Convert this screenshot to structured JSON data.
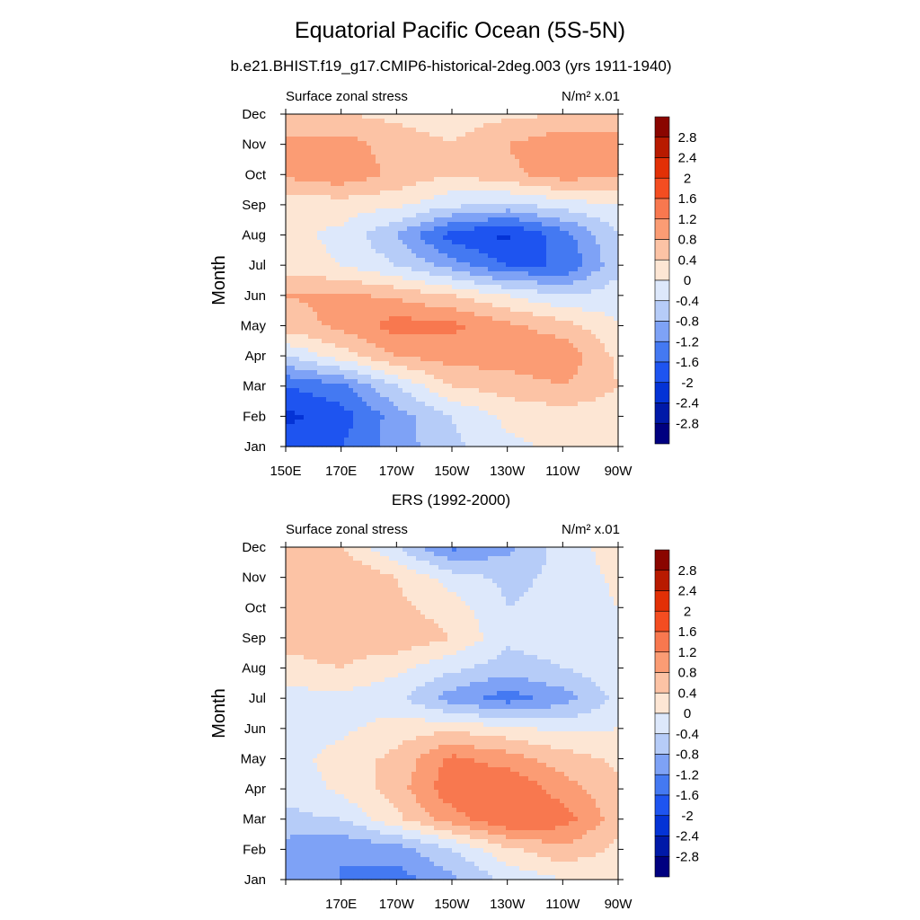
{
  "title": "Equatorial Pacific Ocean (5S-5N)",
  "colors": [
    "#000080",
    "#0019a8",
    "#0433d6",
    "#1e54f0",
    "#4479f2",
    "#7ea2f6",
    "#b6ccf8",
    "#dde8fb",
    "#fde6d4",
    "#fcc3a5",
    "#fb9c74",
    "#f8784f",
    "#f44d21",
    "#e23006",
    "#b81a00",
    "#8a0500"
  ],
  "panels": [
    {
      "heading": "b.e21.BHIST.f19_g17.CMIP6-historical-2deg.003 (yrs 1911-1940)",
      "left_label": "Surface zonal stress",
      "right_label": "N/m² x.01",
      "ylabel": "Month",
      "xticks": [
        "150E",
        "170E",
        "170W",
        "150W",
        "130W",
        "110W",
        "90W"
      ],
      "yticks": [
        "Jan",
        "Feb",
        "Mar",
        "Apr",
        "May",
        "Jun",
        "Jul",
        "Aug",
        "Sep",
        "Oct",
        "Nov",
        "Dec"
      ],
      "colorbar_labels": [
        "2.8",
        "2.4",
        "2",
        "1.6",
        "1.2",
        "0.8",
        "0.4",
        "0",
        "-0.4",
        "-0.8",
        "-1.2",
        "-1.6",
        "-2",
        "-2.4",
        "-2.8"
      ]
    },
    {
      "heading": "ERS (1992-2000)",
      "left_label": "Surface zonal stress",
      "right_label": "N/m² x.01",
      "ylabel": "Month",
      "xticks": [
        "",
        "170E",
        "170W",
        "150W",
        "130W",
        "110W",
        "90W"
      ],
      "yticks": [
        "Jan",
        "Feb",
        "Mar",
        "Apr",
        "May",
        "Jun",
        "Jul",
        "Aug",
        "Sep",
        "Oct",
        "Nov",
        "Dec"
      ],
      "colorbar_labels": [
        "2.8",
        "2.4",
        "2",
        "1.6",
        "1.2",
        "0.8",
        "0.4",
        "0",
        "-0.4",
        "-0.8",
        "-1.2",
        "-1.6",
        "-2",
        "-2.4",
        "-2.8"
      ]
    }
  ],
  "chart_data": [
    {
      "type": "heatmap",
      "xlim_deg_east": [
        150,
        270
      ],
      "x_deg_east": [
        150,
        170,
        190,
        210,
        230,
        250,
        270
      ],
      "y_months": [
        "Jan",
        "Feb",
        "Mar",
        "Apr",
        "May",
        "Jun",
        "Jul",
        "Aug",
        "Sep",
        "Oct",
        "Nov",
        "Dec"
      ],
      "contour_levels": [
        -2.8,
        -2.4,
        -2.0,
        -1.6,
        -1.2,
        -0.8,
        -0.4,
        0,
        0.4,
        0.8,
        1.2,
        1.6,
        2.0,
        2.4,
        2.8
      ],
      "z": [
        [
          -1.8,
          -1.6,
          -1.0,
          -0.5,
          -0.1,
          0.1,
          0.2
        ],
        [
          -2.1,
          -1.8,
          -1.0,
          -0.4,
          0.1,
          0.2,
          0.2
        ],
        [
          -1.6,
          -1.3,
          -0.4,
          0.4,
          0.6,
          0.8,
          0.4
        ],
        [
          -0.4,
          0.2,
          0.8,
          1.0,
          1.0,
          1.1,
          0.3
        ],
        [
          0.6,
          0.9,
          1.4,
          1.3,
          0.9,
          0.6,
          0.0
        ],
        [
          0.8,
          0.9,
          0.7,
          0.4,
          0.0,
          -0.4,
          -0.2
        ],
        [
          0.2,
          0.0,
          -0.4,
          -1.0,
          -1.6,
          -1.6,
          -0.5
        ],
        [
          0.1,
          -0.1,
          -0.8,
          -1.8,
          -2.1,
          -1.4,
          -0.4
        ],
        [
          0.1,
          0.2,
          0.1,
          -0.3,
          -0.5,
          -0.2,
          0.0
        ],
        [
          0.9,
          1.1,
          0.7,
          0.4,
          0.7,
          1.0,
          0.9
        ],
        [
          0.9,
          1.0,
          0.6,
          0.4,
          0.8,
          1.1,
          1.0
        ],
        [
          0.5,
          0.4,
          0.3,
          0.2,
          0.3,
          0.4,
          0.4
        ]
      ]
    },
    {
      "type": "heatmap",
      "xlim_deg_east": [
        150,
        270
      ],
      "x_deg_east": [
        150,
        170,
        190,
        210,
        230,
        250,
        270
      ],
      "y_months": [
        "Jan",
        "Feb",
        "Mar",
        "Apr",
        "May",
        "Jun",
        "Jul",
        "Aug",
        "Sep",
        "Oct",
        "Nov",
        "Dec"
      ],
      "contour_levels": [
        -2.8,
        -2.4,
        -2.0,
        -1.6,
        -1.2,
        -0.8,
        -0.4,
        0,
        0.4,
        0.8,
        1.2,
        1.6,
        2.0,
        2.4,
        2.8
      ],
      "z": [
        [
          -0.8,
          -1.2,
          -1.4,
          -0.9,
          -0.3,
          0.0,
          0.1
        ],
        [
          -1.0,
          -1.2,
          -1.0,
          -0.4,
          0.3,
          0.7,
          0.3
        ],
        [
          -0.5,
          -0.4,
          0.3,
          1.0,
          1.6,
          1.4,
          0.6
        ],
        [
          -0.3,
          0.1,
          0.6,
          1.5,
          1.6,
          1.0,
          0.5
        ],
        [
          -0.2,
          0.2,
          0.5,
          1.3,
          1.0,
          0.6,
          0.3
        ],
        [
          -0.4,
          -0.1,
          0.2,
          0.3,
          0.1,
          -0.1,
          0.0
        ],
        [
          -0.2,
          -0.1,
          -0.3,
          -1.0,
          -1.4,
          -1.0,
          -0.3
        ],
        [
          0.3,
          0.4,
          0.1,
          -0.3,
          -0.6,
          -0.4,
          -0.1
        ],
        [
          0.5,
          0.6,
          0.7,
          0.4,
          -0.3,
          -0.2,
          0.0
        ],
        [
          0.5,
          0.6,
          0.5,
          0.2,
          -0.4,
          -0.3,
          0.0
        ],
        [
          0.6,
          0.8,
          0.4,
          -0.2,
          -0.5,
          -0.3,
          0.1
        ],
        [
          0.5,
          0.4,
          -0.4,
          -1.3,
          -0.9,
          -0.2,
          0.2
        ]
      ]
    }
  ]
}
